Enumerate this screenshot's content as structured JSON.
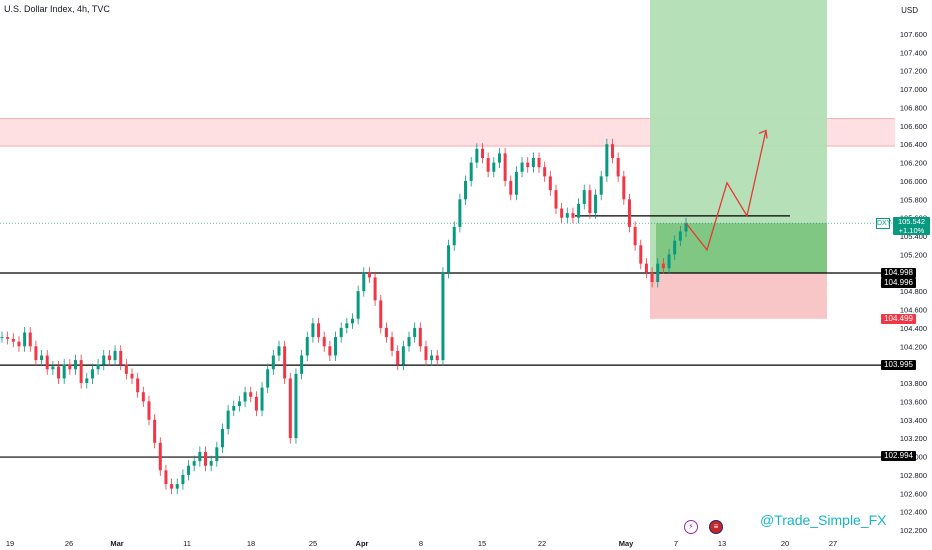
{
  "title": "U.S. Dollar Index, 4h, TVC",
  "currency": "USD",
  "watermark": "@Trade_Simple_FX",
  "symbol_tag": {
    "symbol": "DXY",
    "price": "105.542",
    "change": "+1.10%"
  },
  "levels": [
    {
      "label": "104.998",
      "style": "black"
    },
    {
      "label": "104.996",
      "style": "black"
    },
    {
      "label": "104.499",
      "style": "red"
    },
    {
      "label": "103.995",
      "style": "black"
    },
    {
      "label": "102.994",
      "style": "black"
    }
  ],
  "colors": {
    "up": "#089981",
    "down": "#f23645",
    "zone_top": "#ffd5d8",
    "target_zone": "#b2dfb4",
    "profit_zone": "#81c784",
    "stop_zone": "#f9c6c8",
    "projection": "#e53935",
    "watermark": "#16b5c9"
  },
  "events": [
    {
      "icon": "lightning-icon",
      "x_label": "May"
    },
    {
      "icon": "us-flag-icon",
      "x_label": "May"
    }
  ],
  "chart_data": {
    "type": "candlestick",
    "title": "U.S. Dollar Index, 4h, TVC",
    "ylim": [
      102.2,
      107.9
    ],
    "y_ticks": [
      "107.600",
      "107.400",
      "107.200",
      "107.000",
      "106.800",
      "106.600",
      "106.400",
      "106.200",
      "106.000",
      "105.800",
      "105.600",
      "105.400",
      "105.200",
      "104.800",
      "104.600",
      "104.400",
      "104.200",
      "103.800",
      "103.600",
      "103.400",
      "103.200",
      "103.000",
      "102.800",
      "102.600",
      "102.400",
      "102.200"
    ],
    "x_ticks": [
      "19",
      "26",
      "Mar",
      "11",
      "18",
      "25",
      "Apr",
      "8",
      "15",
      "22",
      "May",
      "7",
      "13",
      "20",
      "27"
    ],
    "path_close": [
      104.3,
      104.28,
      104.25,
      104.2,
      104.35,
      104.2,
      104.05,
      104.1,
      103.95,
      103.98,
      103.85,
      104.0,
      103.95,
      104.05,
      103.8,
      103.85,
      103.95,
      104.0,
      104.1,
      104.05,
      104.15,
      104.0,
      103.9,
      103.85,
      103.7,
      103.6,
      103.4,
      103.15,
      102.85,
      102.7,
      102.65,
      102.7,
      102.8,
      102.9,
      102.95,
      103.05,
      102.9,
      102.95,
      103.1,
      103.3,
      103.5,
      103.55,
      103.6,
      103.7,
      103.65,
      103.5,
      103.75,
      103.95,
      104.1,
      104.2,
      103.85,
      103.2,
      103.9,
      104.1,
      104.3,
      104.45,
      104.3,
      104.2,
      104.1,
      104.3,
      104.4,
      104.45,
      104.5,
      104.8,
      105.0,
      104.95,
      104.7,
      104.4,
      104.3,
      104.15,
      104.0,
      104.2,
      104.3,
      104.4,
      104.2,
      104.05,
      104.1,
      104.05,
      105.0,
      105.3,
      105.5,
      105.8,
      106.0,
      106.2,
      106.35,
      106.25,
      106.1,
      106.2,
      106.3,
      106.0,
      105.85,
      106.1,
      106.2,
      106.15,
      106.25,
      106.15,
      106.05,
      105.9,
      105.7,
      105.6,
      105.65,
      105.6,
      105.75,
      105.9,
      105.65,
      105.85,
      106.05,
      106.4,
      106.25,
      106.05,
      105.8,
      105.5,
      105.3,
      105.1,
      105.0,
      104.9,
      105.1,
      105.05,
      105.2,
      105.35,
      105.45,
      105.54
    ],
    "start_value": 104.3,
    "projection_path": [
      105.54,
      105.25,
      105.98,
      105.62,
      106.55
    ],
    "resistance_zone": [
      106.38,
      106.68
    ],
    "support_lines": [
      104.998,
      103.995,
      102.994
    ],
    "pivot_line": 105.62,
    "trade_box": {
      "stop": 104.499,
      "entry": 104.998,
      "profit_start": 105.54,
      "target": 107.9
    }
  }
}
